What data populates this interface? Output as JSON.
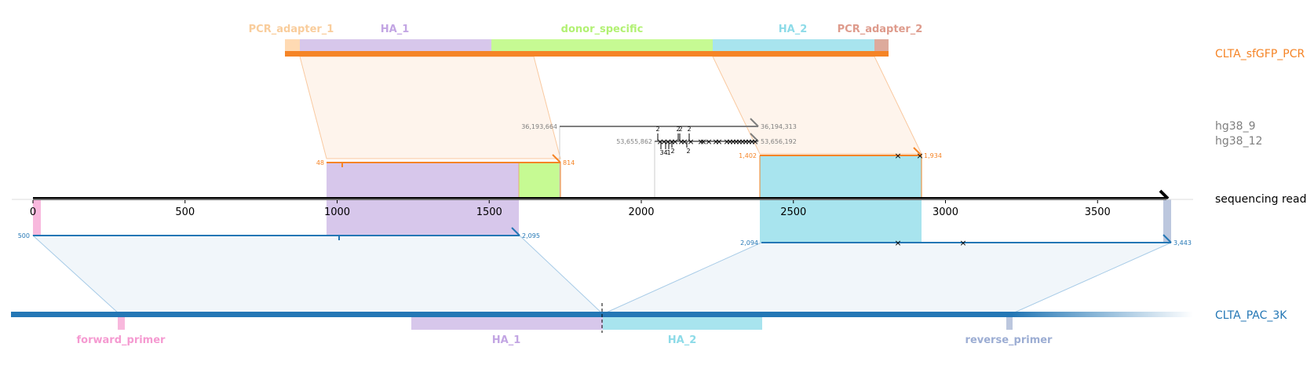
{
  "tracks": {
    "pcr": "CLTA_sfGFP_PCR",
    "hg9": "hg38_9",
    "hg12": "hg38_12",
    "read": "sequencing read",
    "pac": "CLTA_PAC_3K"
  },
  "top_features": [
    {
      "label": "PCR_adapter_1",
      "color": "#ffdab3",
      "text_color": "#f9cd9c"
    },
    {
      "label": "HA_1",
      "color": "#d7c7eb",
      "text_color": "#c2a5e3"
    },
    {
      "label": "donor_specific",
      "color": "#c6fa93",
      "text_color": "#b2f173"
    },
    {
      "label": "HA_2",
      "color": "#a8e4ee",
      "text_color": "#8ddbe8"
    },
    {
      "label": "PCR_adapter_2",
      "color": "#ddaa9c",
      "text_color": "#de9b8c"
    }
  ],
  "bottom_features": [
    {
      "label": "forward_primer",
      "color": "#f8b8dd",
      "text_color": "#f59ad1"
    },
    {
      "label": "HA_1",
      "color": "#d7c7eb",
      "text_color": "#c2a5e3"
    },
    {
      "label": "HA_2",
      "color": "#a8e4ee",
      "text_color": "#8ddbe8"
    },
    {
      "label": "reverse_primer",
      "color": "#bcc7de",
      "text_color": "#9cadd3"
    }
  ],
  "axis": {
    "ticks": [
      "0",
      "500",
      "1000",
      "1500",
      "2000",
      "2500",
      "3000",
      "3500"
    ]
  },
  "alignments": {
    "pcr_a": {
      "start": "48",
      "end": "814"
    },
    "pcr_b": {
      "start": "1,402",
      "end": "1,934"
    },
    "hg9": {
      "start": "36,193,664",
      "end": "36,194,313"
    },
    "hg12": {
      "start": "53,655,862",
      "end": "53,656,192"
    },
    "pac_a": {
      "start": "500",
      "end": "2,095"
    },
    "pac_b": {
      "start": "2,094",
      "end": "3,443"
    }
  },
  "indels": {
    "above": [
      "2",
      "2",
      "2",
      "2",
      "2"
    ],
    "below": [
      "3",
      "4",
      "1",
      "2",
      "2"
    ]
  },
  "colors": {
    "pcr": "#f58426",
    "pac": "#2477b5",
    "hg": "#7f7f7f",
    "read": "#000000"
  }
}
